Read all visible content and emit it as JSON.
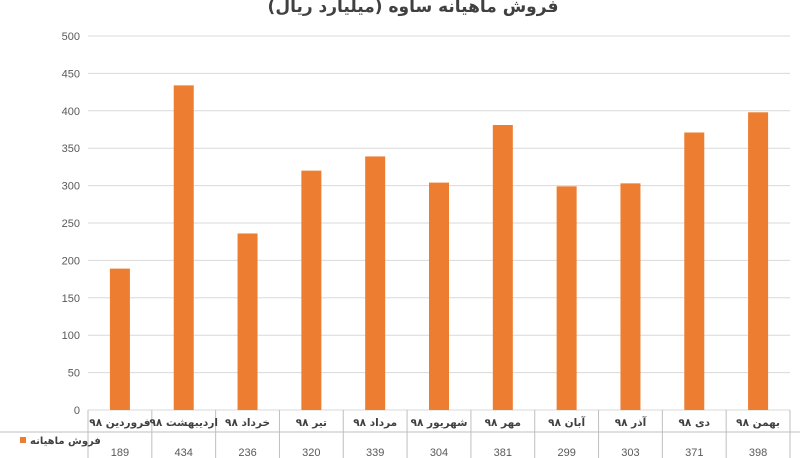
{
  "chart_data": {
    "type": "bar",
    "title": "فروش ماهیانه ساوه (میلیارد ریال)",
    "categories": [
      "فروردین ۹۸",
      "اردیبهشت ۹۸",
      "خرداد ۹۸",
      "تیر ۹۸",
      "مرداد ۹۸",
      "شهریور ۹۸",
      "مهر ۹۸",
      "آبان ۹۸",
      "آذر ۹۸",
      "دی ۹۸",
      "بهمن ۹۸"
    ],
    "series": [
      {
        "name": "فروش ماهیانه",
        "color": "#ed7d31",
        "values": [
          189,
          434,
          236,
          320,
          339,
          304,
          381,
          299,
          303,
          371,
          398
        ]
      }
    ],
    "ylim": [
      0,
      500
    ],
    "yticks": [
      0,
      50,
      100,
      150,
      200,
      250,
      300,
      350,
      400,
      450,
      500
    ],
    "grid": true,
    "data_table": true
  }
}
